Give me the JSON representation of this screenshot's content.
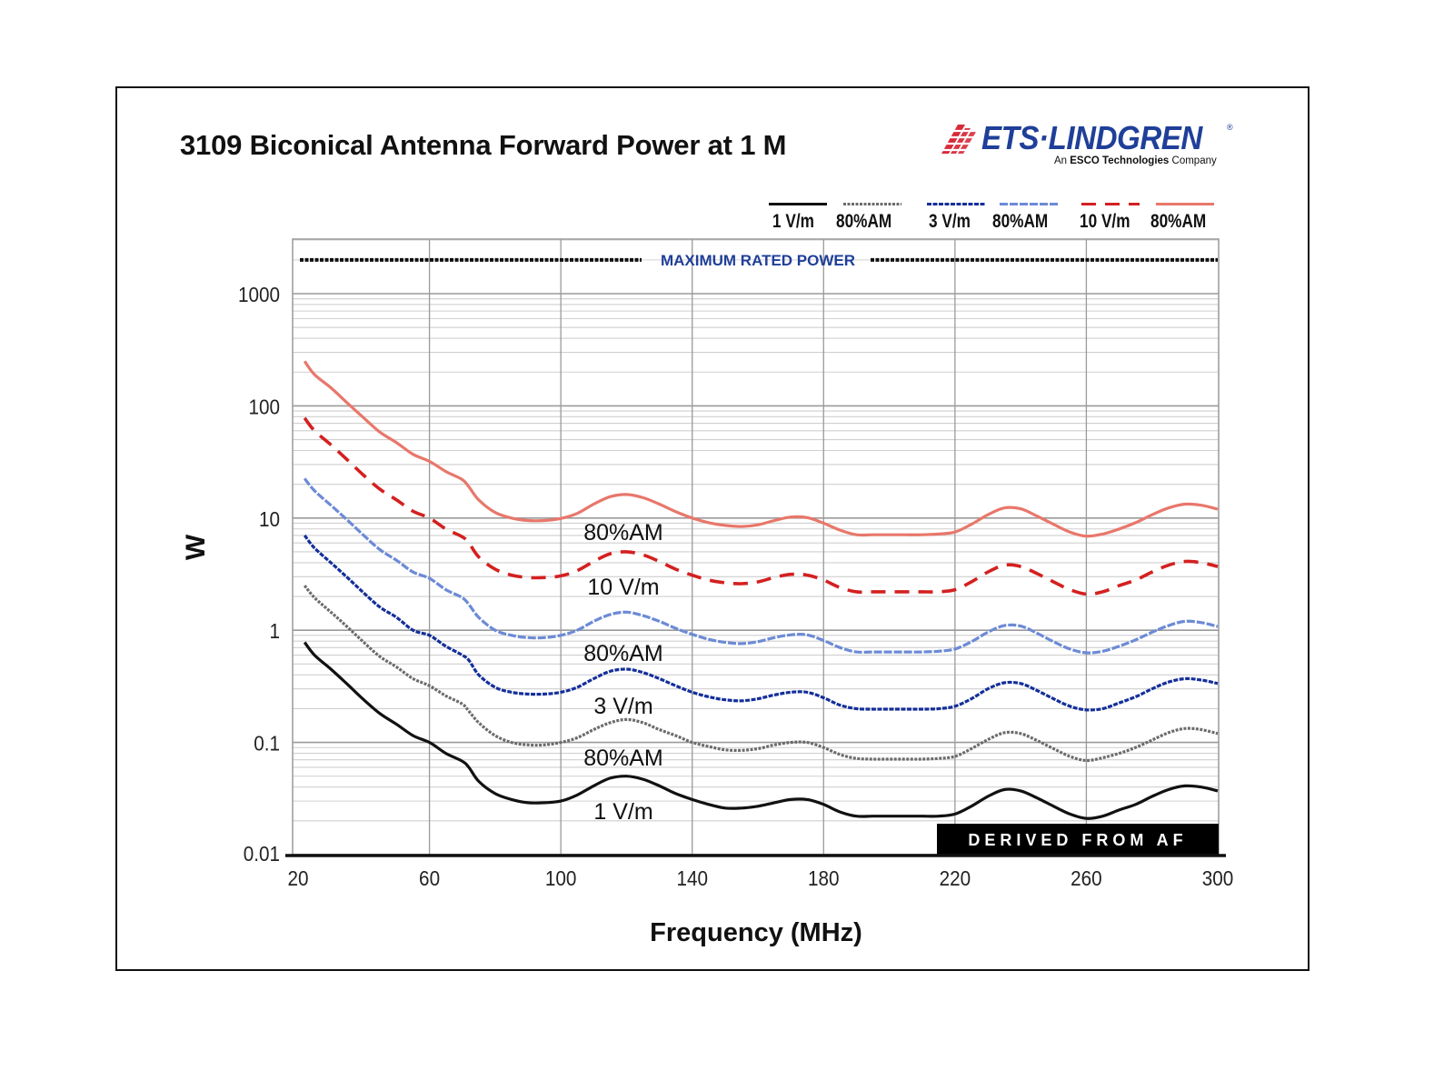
{
  "chart_data": {
    "type": "line",
    "title": "3109 Biconical Antenna Forward Power at 1 M",
    "xlabel": "Frequency (MHz)",
    "ylabel": "W",
    "xscale": "linear",
    "yscale": "log",
    "xlim": [
      20,
      300
    ],
    "ylim": [
      0.01,
      3000
    ],
    "x_ticks": [
      20,
      60,
      100,
      140,
      180,
      220,
      260,
      300
    ],
    "x_tick_labels": [
      "20",
      "60",
      "100",
      "140",
      "180",
      "220",
      "260",
      "300"
    ],
    "y_ticks": [
      0.01,
      0.1,
      1,
      10,
      100,
      1000
    ],
    "y_tick_labels": [
      "0.01",
      "0.1",
      "1",
      "10",
      "100",
      "1000"
    ],
    "grid": true,
    "legend_position": "top-right",
    "reference_line": {
      "label": "MAXIMUM RATED POWER",
      "value": 2000,
      "color": "#1f3f99"
    },
    "badge": "DERIVED FROM AF",
    "x": [
      22,
      25,
      30,
      35,
      40,
      45,
      50,
      55,
      60,
      65,
      70,
      72,
      75,
      80,
      85,
      90,
      95,
      100,
      105,
      110,
      115,
      120,
      125,
      130,
      135,
      140,
      145,
      150,
      155,
      160,
      165,
      170,
      175,
      180,
      185,
      190,
      195,
      200,
      205,
      210,
      215,
      220,
      225,
      230,
      235,
      240,
      245,
      250,
      255,
      260,
      265,
      270,
      275,
      280,
      285,
      290,
      295,
      300
    ],
    "series": [
      {
        "name": "1 V/m",
        "color": "#111111",
        "dash": "solid",
        "values": [
          0.78,
          0.6,
          0.45,
          0.33,
          0.24,
          0.18,
          0.145,
          0.115,
          0.1,
          0.08,
          0.068,
          0.06,
          0.045,
          0.035,
          0.031,
          0.029,
          0.029,
          0.03,
          0.034,
          0.041,
          0.048,
          0.05,
          0.047,
          0.041,
          0.035,
          0.031,
          0.028,
          0.026,
          0.026,
          0.027,
          0.029,
          0.031,
          0.031,
          0.028,
          0.024,
          0.022,
          0.022,
          0.022,
          0.022,
          0.022,
          0.022,
          0.023,
          0.027,
          0.033,
          0.038,
          0.037,
          0.032,
          0.027,
          0.023,
          0.021,
          0.022,
          0.025,
          0.028,
          0.033,
          0.038,
          0.041,
          0.04,
          0.037
        ]
      },
      {
        "name": "80%AM (1 V/m)",
        "color": "#6b6b6b",
        "dash": "dotted",
        "values": [
          2.5,
          1.95,
          1.45,
          1.07,
          0.78,
          0.58,
          0.47,
          0.37,
          0.32,
          0.26,
          0.22,
          0.19,
          0.15,
          0.115,
          0.1,
          0.095,
          0.095,
          0.1,
          0.11,
          0.13,
          0.15,
          0.16,
          0.15,
          0.13,
          0.115,
          0.1,
          0.092,
          0.086,
          0.085,
          0.088,
          0.095,
          0.1,
          0.1,
          0.09,
          0.078,
          0.072,
          0.071,
          0.071,
          0.071,
          0.071,
          0.072,
          0.075,
          0.088,
          0.106,
          0.122,
          0.12,
          0.104,
          0.088,
          0.075,
          0.069,
          0.073,
          0.08,
          0.09,
          0.105,
          0.122,
          0.133,
          0.13,
          0.12
        ]
      },
      {
        "name": "3 V/m",
        "color": "#142f9a",
        "dash": "dense-dash",
        "values": [
          7.0,
          5.4,
          4.0,
          2.95,
          2.15,
          1.6,
          1.3,
          1.0,
          0.9,
          0.72,
          0.6,
          0.54,
          0.4,
          0.31,
          0.28,
          0.27,
          0.27,
          0.28,
          0.31,
          0.37,
          0.43,
          0.45,
          0.42,
          0.37,
          0.32,
          0.28,
          0.255,
          0.24,
          0.235,
          0.245,
          0.265,
          0.28,
          0.28,
          0.25,
          0.215,
          0.2,
          0.198,
          0.198,
          0.198,
          0.198,
          0.2,
          0.21,
          0.245,
          0.3,
          0.34,
          0.335,
          0.29,
          0.245,
          0.21,
          0.195,
          0.2,
          0.225,
          0.255,
          0.3,
          0.345,
          0.37,
          0.36,
          0.335
        ]
      },
      {
        "name": "80%AM (3 V/m)",
        "color": "#6c8ad6",
        "dash": "dashed",
        "values": [
          22.5,
          17.5,
          13.0,
          9.6,
          7.0,
          5.2,
          4.2,
          3.3,
          2.9,
          2.3,
          1.95,
          1.7,
          1.3,
          1.0,
          0.9,
          0.86,
          0.86,
          0.9,
          1.0,
          1.2,
          1.38,
          1.45,
          1.35,
          1.2,
          1.04,
          0.92,
          0.83,
          0.78,
          0.76,
          0.79,
          0.86,
          0.91,
          0.91,
          0.81,
          0.7,
          0.64,
          0.64,
          0.64,
          0.64,
          0.64,
          0.65,
          0.68,
          0.79,
          0.96,
          1.1,
          1.09,
          0.94,
          0.79,
          0.68,
          0.63,
          0.65,
          0.72,
          0.82,
          0.96,
          1.1,
          1.2,
          1.17,
          1.08
        ]
      },
      {
        "name": "10 V/m",
        "color": "#d42020",
        "dash": "long-dash",
        "values": [
          78,
          60,
          45,
          33,
          24,
          18,
          14.5,
          11.5,
          10,
          8,
          6.8,
          6.0,
          4.5,
          3.5,
          3.1,
          2.95,
          2.95,
          3.05,
          3.4,
          4.1,
          4.8,
          5.0,
          4.7,
          4.1,
          3.5,
          3.1,
          2.8,
          2.65,
          2.6,
          2.7,
          2.95,
          3.15,
          3.1,
          2.8,
          2.4,
          2.2,
          2.2,
          2.2,
          2.2,
          2.2,
          2.2,
          2.3,
          2.7,
          3.3,
          3.8,
          3.7,
          3.2,
          2.7,
          2.3,
          2.1,
          2.2,
          2.5,
          2.8,
          3.3,
          3.8,
          4.1,
          4.0,
          3.7
        ]
      },
      {
        "name": "80%AM (10 V/m)",
        "color": "#e8776b",
        "dash": "solid",
        "values": [
          250,
          190,
          145,
          106,
          78,
          58,
          47,
          37,
          32,
          26,
          22,
          19,
          14.5,
          11.2,
          10.0,
          9.5,
          9.5,
          9.9,
          11.0,
          13.3,
          15.5,
          16.2,
          15.2,
          13.3,
          11.4,
          10.0,
          9.1,
          8.6,
          8.4,
          8.7,
          9.5,
          10.2,
          10.1,
          9.0,
          7.8,
          7.1,
          7.1,
          7.1,
          7.1,
          7.1,
          7.2,
          7.5,
          8.8,
          10.7,
          12.3,
          12.1,
          10.4,
          8.8,
          7.5,
          6.9,
          7.2,
          8.0,
          9.1,
          10.7,
          12.3,
          13.3,
          13.0,
          12.0
        ]
      }
    ],
    "curve_labels": [
      {
        "text": "80%AM",
        "series": "80%AM (10 V/m)"
      },
      {
        "text": "10 V/m",
        "series": "10 V/m"
      },
      {
        "text": "80%AM",
        "series": "80%AM (3 V/m)"
      },
      {
        "text": "3 V/m",
        "series": "3 V/m"
      },
      {
        "text": "80%AM",
        "series": "80%AM (1 V/m)"
      },
      {
        "text": "1 V/m",
        "series": "1 V/m"
      }
    ]
  },
  "legend": [
    {
      "label": "1 V/m",
      "color": "#111111",
      "style": "solid"
    },
    {
      "label": "80%AM",
      "color": "#6b6b6b",
      "style": "dotted"
    },
    {
      "label": "3 V/m",
      "color": "#142f9a",
      "style": "dense-dash"
    },
    {
      "label": "80%AM",
      "color": "#6c8ad6",
      "style": "dashed"
    },
    {
      "label": "10 V/m",
      "color": "#d42020",
      "style": "long-dash"
    },
    {
      "label": "80%AM",
      "color": "#e8776b",
      "style": "solid"
    }
  ],
  "logo": {
    "name": "ETS·LINDGREN",
    "registered": "®",
    "tagline_prefix": "An ",
    "tagline_bold": "ESCO Technologies",
    "tagline_suffix": " Company",
    "brand_color": "#1f3f99",
    "accent_color": "#d82a3a"
  }
}
